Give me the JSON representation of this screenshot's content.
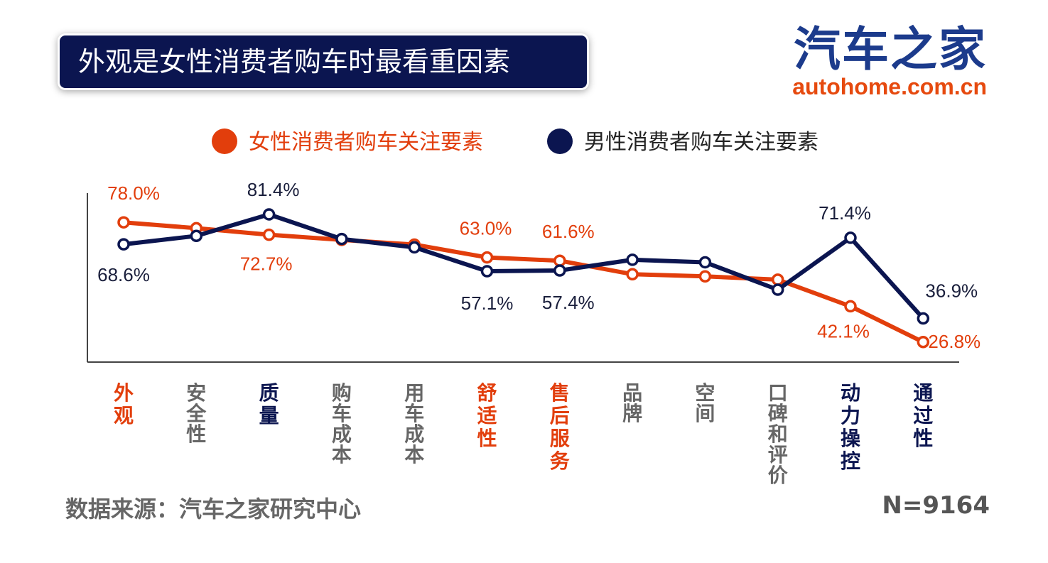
{
  "title": "外观是女性消费者购车时最看重因素",
  "logo": {
    "cn": "汽车之家",
    "en": "autohome.com.cn"
  },
  "source": "数据来源：汽车之家研究中心",
  "sample": "N=9164",
  "colors": {
    "female": "#e23e0c",
    "male": "#0b1550",
    "axis": "#444444",
    "neutral": "#666666"
  },
  "chart_data": {
    "type": "line",
    "categories": [
      "外观",
      "安全性",
      "质量",
      "购车成本",
      "用车成本",
      "舒适性",
      "售后服务",
      "品牌",
      "空间",
      "口碑和评价",
      "动力操控",
      "通过性"
    ],
    "category_emphasis": [
      "female",
      "neutral",
      "male",
      "neutral",
      "neutral",
      "female",
      "female",
      "neutral",
      "neutral",
      "neutral",
      "male",
      "male"
    ],
    "series": [
      {
        "name": "女性消费者购车关注要素",
        "color": "#e23e0c",
        "values": [
          78.0,
          75.5,
          72.7,
          70.5,
          68.5,
          63.0,
          61.6,
          55.8,
          54.9,
          53.5,
          42.1,
          26.8
        ],
        "labels": [
          "78.0%",
          "",
          "72.7%",
          "",
          "",
          "63.0%",
          "61.6%",
          "",
          "",
          "",
          "42.1%",
          "26.8%"
        ]
      },
      {
        "name": "男性消费者购车关注要素",
        "color": "#0b1550",
        "values": [
          68.6,
          72.2,
          81.4,
          70.9,
          67.3,
          57.1,
          57.4,
          62.0,
          60.9,
          49.2,
          71.4,
          36.9
        ],
        "labels": [
          "68.6%",
          "",
          "81.4%",
          "",
          "",
          "57.1%",
          "57.4%",
          "",
          "",
          "",
          "71.4%",
          "36.9%"
        ]
      }
    ],
    "legend_position": "top-center",
    "grid": false
  }
}
